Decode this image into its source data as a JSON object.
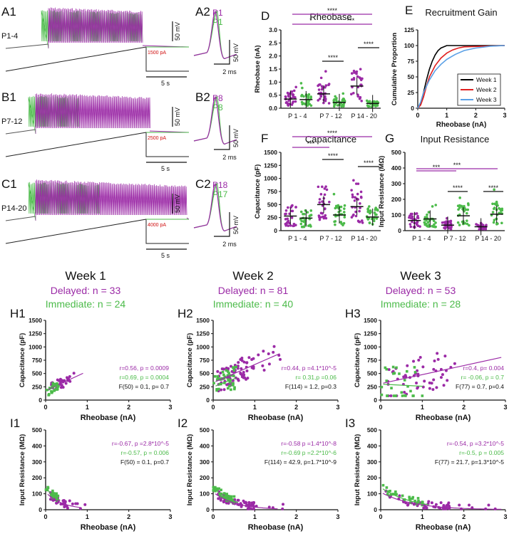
{
  "colors": {
    "delayed": "#9b2aa6",
    "immediate": "#4cbb4a",
    "week1": "#000000",
    "week2": "#e02020",
    "week3": "#5aa0e6",
    "axis": "#111111",
    "current": "#d01010"
  },
  "traces": [
    {
      "panel": "A1",
      "age": "P1-4",
      "pair_panel": "A2",
      "labels": [
        "P1",
        "P1"
      ],
      "current": "1500 pA",
      "scale_v": "50 mV",
      "scale_t": "5 s",
      "scale_v2": "50 mV",
      "scale_t2": "2 ms"
    },
    {
      "panel": "B1",
      "age": "P7-12",
      "pair_panel": "B2",
      "labels": [
        "P8",
        "P8"
      ],
      "current": "2500 pA",
      "scale_v": "50 mV",
      "scale_t": "5 s",
      "scale_v2": "50 mV",
      "scale_t2": "2 ms"
    },
    {
      "panel": "C1",
      "age": "P14-20",
      "pair_panel": "C2",
      "labels": [
        "P18",
        "P17"
      ],
      "current": "4000 pA",
      "scale_v": "50 mV",
      "scale_t": "5 s",
      "scale_v2": "50 mV",
      "scale_t2": "2 ms"
    }
  ],
  "weeks": [
    {
      "title": "Week 1",
      "delayed": "Delayed: n = 33",
      "immediate": "Immediate: n = 24"
    },
    {
      "title": "Week 2",
      "delayed": "Delayed: n = 81",
      "immediate": "Immediate: n = 40"
    },
    {
      "title": "Week 3",
      "delayed": "Delayed: n = 53",
      "immediate": "Immediate: n = 28"
    }
  ],
  "chart_data": [
    {
      "panel": "D",
      "type": "scatter",
      "title": "Rheobase",
      "ylabel": "Rheobase (nA)",
      "ylim": [
        0,
        3.0
      ],
      "yticks": [
        "0.0",
        "0.5",
        "1.0",
        "1.5",
        "2.0",
        "2.5",
        "3.0"
      ],
      "categories": [
        "P 1 - 4",
        "P 7 - 12",
        "P 14 - 20"
      ],
      "groups": [
        {
          "name": "Delayed",
          "mean": [
            0.35,
            0.55,
            0.85
          ]
        },
        {
          "name": "Immediate",
          "mean": [
            0.33,
            0.22,
            0.18
          ]
        }
      ],
      "significance": [
        "****",
        "*",
        "***",
        "****",
        "****"
      ]
    },
    {
      "panel": "E",
      "type": "line",
      "title": "Recruitment Gain",
      "xlabel": "Rheobase  (nA)",
      "ylabel": "Cumulative Proportion",
      "xlim": [
        0,
        3
      ],
      "ylim": [
        0,
        125
      ],
      "xticks": [
        "0",
        "1",
        "2",
        "3"
      ],
      "yticks": [
        "0",
        "25",
        "50",
        "75",
        "100",
        "125"
      ],
      "series": [
        {
          "name": "Week 1",
          "x": [
            0,
            0.1,
            0.2,
            0.3,
            0.4,
            0.5,
            0.6,
            0.7,
            0.8,
            0.9,
            1.0,
            3.0
          ],
          "y": [
            0,
            8,
            25,
            45,
            62,
            75,
            85,
            92,
            96,
            98,
            100,
            100
          ]
        },
        {
          "name": "Week 2",
          "x": [
            0,
            0.1,
            0.2,
            0.3,
            0.4,
            0.6,
            0.8,
            1.0,
            1.2,
            1.4,
            1.6,
            3.0
          ],
          "y": [
            0,
            5,
            18,
            35,
            50,
            68,
            80,
            88,
            93,
            96,
            98,
            100
          ]
        },
        {
          "name": "Week 3",
          "x": [
            0,
            0.1,
            0.2,
            0.4,
            0.6,
            0.8,
            1.0,
            1.3,
            1.6,
            2.0,
            2.5,
            3.0
          ],
          "y": [
            0,
            10,
            25,
            45,
            60,
            70,
            78,
            86,
            92,
            96,
            99,
            100
          ]
        }
      ]
    },
    {
      "panel": "F",
      "type": "scatter",
      "title": "Capacitance",
      "ylabel": "Capacitance (pF)",
      "ylim": [
        0,
        1500
      ],
      "yticks": [
        "0",
        "250",
        "500",
        "750",
        "1000",
        "1250",
        "1500"
      ],
      "categories": [
        "P 1 - 4",
        "P 7 - 12",
        "P 14 - 20"
      ],
      "groups": [
        {
          "name": "Delayed",
          "mean": [
            280,
            500,
            460
          ]
        },
        {
          "name": "Immediate",
          "mean": [
            240,
            300,
            260
          ]
        }
      ],
      "significance": [
        "****",
        "***",
        "****",
        "****"
      ]
    },
    {
      "panel": "G",
      "type": "scatter",
      "title": "Input Resistance",
      "ylabel": "Input Resistance (MΩ)",
      "ylim": [
        0,
        500
      ],
      "yticks": [
        "0",
        "100",
        "200",
        "300",
        "400",
        "500"
      ],
      "categories": [
        "P 1 - 4",
        "P 7 - 12",
        "P 14 - 20"
      ],
      "groups": [
        {
          "name": "Delayed",
          "mean": [
            65,
            35,
            25
          ]
        },
        {
          "name": "Immediate",
          "mean": [
            75,
            95,
            105
          ]
        }
      ],
      "significance": [
        "***",
        "***",
        "****",
        "****"
      ]
    },
    {
      "panel": "H1",
      "type": "scatter",
      "xlabel": "Rheobase (nA)",
      "ylabel": "Capacitance (pF)",
      "xlim": [
        0,
        3
      ],
      "ylim": [
        0,
        1500
      ],
      "xticks": [
        "0",
        "1",
        "2",
        "3"
      ],
      "yticks": [
        "0",
        "250",
        "500",
        "750",
        "1000",
        "1250",
        "1500"
      ],
      "stats": [
        "r=0.56, p = 0.0009",
        "r=0.69, p = 0.0004",
        "F(50) = 0.1, p= 0.7"
      ],
      "lines": [
        {
          "name": "Delayed",
          "slope": 360,
          "intercept": 180
        },
        {
          "name": "Immediate",
          "slope": 420,
          "intercept": 160
        }
      ]
    },
    {
      "panel": "H2",
      "type": "scatter",
      "xlabel": "Rheobase (nA)",
      "ylabel": "Capacitance (pF)",
      "xlim": [
        0,
        3
      ],
      "ylim": [
        0,
        1500
      ],
      "xticks": [
        "0",
        "1",
        "2",
        "3"
      ],
      "yticks": [
        "0",
        "250",
        "500",
        "750",
        "1000",
        "1250",
        "1500"
      ],
      "stats": [
        "r=0.44, p =4.1*10^-5",
        "r= 0.31,p =0.06",
        "F(114) = 1.2, p=0.3"
      ],
      "lines": [
        {
          "name": "Delayed",
          "slope": 340,
          "intercept": 330
        },
        {
          "name": "Immediate",
          "slope": 300,
          "intercept": 250
        }
      ]
    },
    {
      "panel": "H3",
      "type": "scatter",
      "xlabel": "Rheobase (nA)",
      "ylabel": "Capacitance (pF)",
      "xlim": [
        0,
        3
      ],
      "ylim": [
        0,
        1500
      ],
      "xticks": [
        "0",
        "1",
        "2",
        "3"
      ],
      "yticks": [
        "0",
        "250",
        "500",
        "750",
        "1000",
        "1250",
        "1500"
      ],
      "stats": [
        "r=0.4, p= 0.004",
        "r= -0.06, p = 0.7",
        "F(77) = 0.7, p=0.4"
      ],
      "lines": [
        {
          "name": "Delayed",
          "slope": 170,
          "intercept": 310
        },
        {
          "name": "Immediate",
          "slope": -40,
          "intercept": 300
        }
      ]
    },
    {
      "panel": "I1",
      "type": "scatter",
      "xlabel": "Rheobase (nA)",
      "ylabel": "Input Resistance (MΩ)",
      "xlim": [
        0,
        3
      ],
      "ylim": [
        0,
        500
      ],
      "xticks": [
        "0",
        "1",
        "2",
        "3"
      ],
      "yticks": [
        "0",
        "100",
        "200",
        "300",
        "400",
        "500"
      ],
      "stats": [
        "r=-0.67, p =2.8*10^-5",
        "r=-0.57, p = 0.006",
        "F(50) = 0.1, p=0.7"
      ]
    },
    {
      "panel": "I2",
      "type": "scatter",
      "xlabel": "Rheobase (nA)",
      "ylabel": "Input Resistance (MΩ)",
      "xlim": [
        0,
        3
      ],
      "ylim": [
        0,
        500
      ],
      "xticks": [
        "0",
        "1",
        "2",
        "3"
      ],
      "yticks": [
        "0",
        "100",
        "200",
        "300",
        "400",
        "500"
      ],
      "stats": [
        "r=-0.58 p =1.4*10^-8",
        "r=-0.69 p =2.2*10^-6",
        "F(114) = 42.9, p=1.7*10^-9"
      ]
    },
    {
      "panel": "I3",
      "type": "scatter",
      "xlabel": "Rheobase (nA)",
      "ylabel": "Input Resistance (MΩ)",
      "xlim": [
        0,
        3
      ],
      "ylim": [
        0,
        500
      ],
      "xticks": [
        "0",
        "1",
        "2",
        "3"
      ],
      "yticks": [
        "0",
        "100",
        "200",
        "300",
        "400",
        "500"
      ],
      "stats": [
        "r=-0.54, p =3.2*10^-5",
        "r=-0.5, p = 0.005",
        "F(77) = 21.7, p=1.3*10^-5"
      ]
    }
  ]
}
